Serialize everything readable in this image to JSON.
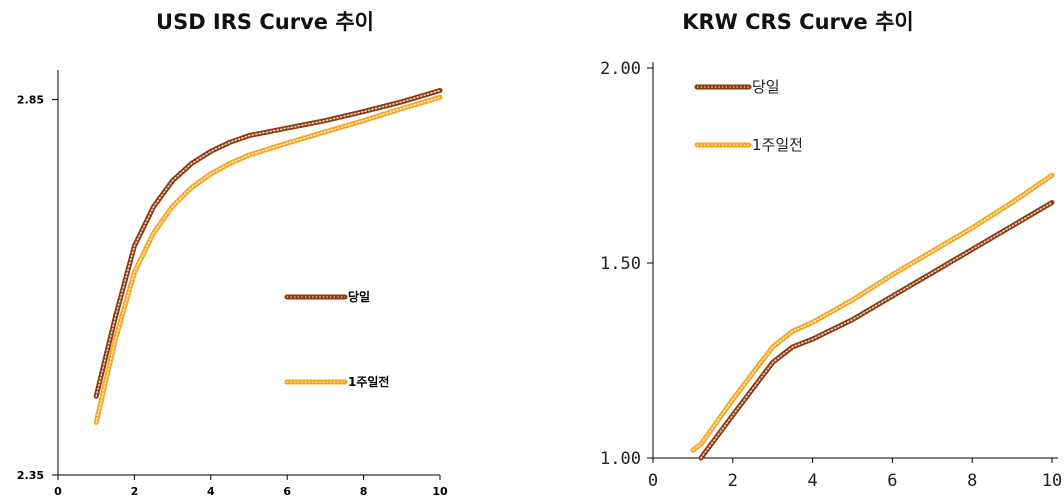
{
  "chart_data": [
    {
      "type": "line",
      "title": "USD IRS Curve 추이",
      "xlabel": "",
      "ylabel": "",
      "xlim": [
        0,
        10
      ],
      "ylim": [
        2.35,
        2.9
      ],
      "xticks": [
        "0",
        "2",
        "4",
        "6",
        "8",
        "10"
      ],
      "yticks": [
        "2.35",
        "2.85"
      ],
      "ytick_values": [
        2.35,
        2.85
      ],
      "grid": false,
      "legend": "center-right",
      "x": [
        1,
        1.5,
        2,
        2.5,
        3,
        3.5,
        4,
        4.5,
        5,
        6,
        7,
        8,
        9,
        10
      ],
      "series": [
        {
          "name": "당일",
          "color": "#8b3a0e",
          "values": [
            2.455,
            2.56,
            2.655,
            2.707,
            2.742,
            2.765,
            2.781,
            2.793,
            2.802,
            2.812,
            2.822,
            2.834,
            2.847,
            2.862
          ]
        },
        {
          "name": "1주일전",
          "color": "#f5a623",
          "values": [
            2.42,
            2.53,
            2.62,
            2.672,
            2.708,
            2.733,
            2.751,
            2.765,
            2.776,
            2.792,
            2.807,
            2.822,
            2.838,
            2.853
          ]
        }
      ]
    },
    {
      "type": "line",
      "title": "KRW CRS Curve 추이",
      "xlabel": "",
      "ylabel": "",
      "xlim": [
        0,
        10
      ],
      "ylim": [
        1.0,
        2.0
      ],
      "xticks": [
        "0",
        "2",
        "4",
        "6",
        "8",
        "10"
      ],
      "yticks": [
        "1.00",
        "1.50",
        "2.00"
      ],
      "ytick_values": [
        1.0,
        1.5,
        2.0
      ],
      "grid": false,
      "legend": "top-left",
      "x": [
        1,
        1.2,
        2,
        3,
        3.5,
        4,
        5,
        6,
        7,
        8,
        9,
        10
      ],
      "series": [
        {
          "name": "당일",
          "color": "#8b3a0e",
          "values": [
            null,
            1.0,
            1.11,
            1.245,
            1.285,
            1.305,
            1.355,
            1.415,
            1.475,
            1.535,
            1.595,
            1.655
          ]
        },
        {
          "name": "1주일전",
          "color": "#f5a623",
          "values": [
            1.02,
            1.035,
            1.15,
            1.285,
            1.325,
            1.348,
            1.405,
            1.47,
            1.53,
            1.59,
            1.655,
            1.725
          ]
        }
      ]
    }
  ]
}
